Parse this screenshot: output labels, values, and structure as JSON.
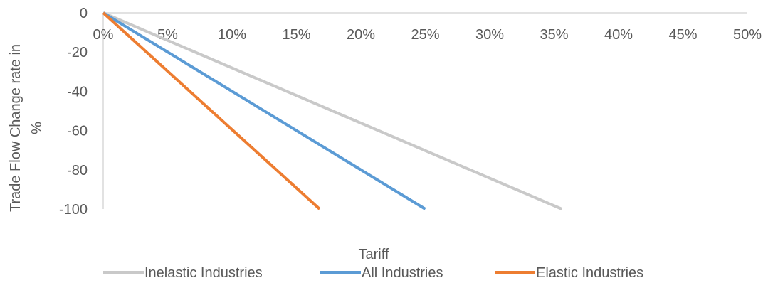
{
  "chart_data": {
    "type": "line",
    "title": "",
    "xlabel": "Tariff",
    "ylabel": "Trade Flow  Change rate in %",
    "ylabel_lines": [
      "Trade Flow  Change rate in",
      "%"
    ],
    "x_ticks": [
      0,
      0.05,
      0.1,
      0.15,
      0.2,
      0.25,
      0.3,
      0.35,
      0.4,
      0.45,
      0.5
    ],
    "x_tick_labels": [
      "0%",
      "5%",
      "10%",
      "15%",
      "20%",
      "25%",
      "30%",
      "35%",
      "40%",
      "45%",
      "50%"
    ],
    "y_ticks": [
      0,
      -20,
      -40,
      -60,
      -80,
      -100
    ],
    "y_tick_labels": [
      "0",
      "-20",
      "-40",
      "-60",
      "-80",
      "-100"
    ],
    "xlim": [
      0,
      0.5
    ],
    "ylim": [
      -100,
      0
    ],
    "grid": false,
    "legend_position": "bottom",
    "series": [
      {
        "name": "Inelastic Industries",
        "color": "#C9C9C9",
        "x": [
          0,
          0.356
        ],
        "y": [
          0,
          -100
        ]
      },
      {
        "name": "All Industries",
        "color": "#5B9BD5",
        "x": [
          0,
          0.25
        ],
        "y": [
          0,
          -100
        ]
      },
      {
        "name": "Elastic Industries",
        "color": "#ED7D31",
        "x": [
          0,
          0.168
        ],
        "y": [
          0,
          -100
        ]
      }
    ]
  }
}
